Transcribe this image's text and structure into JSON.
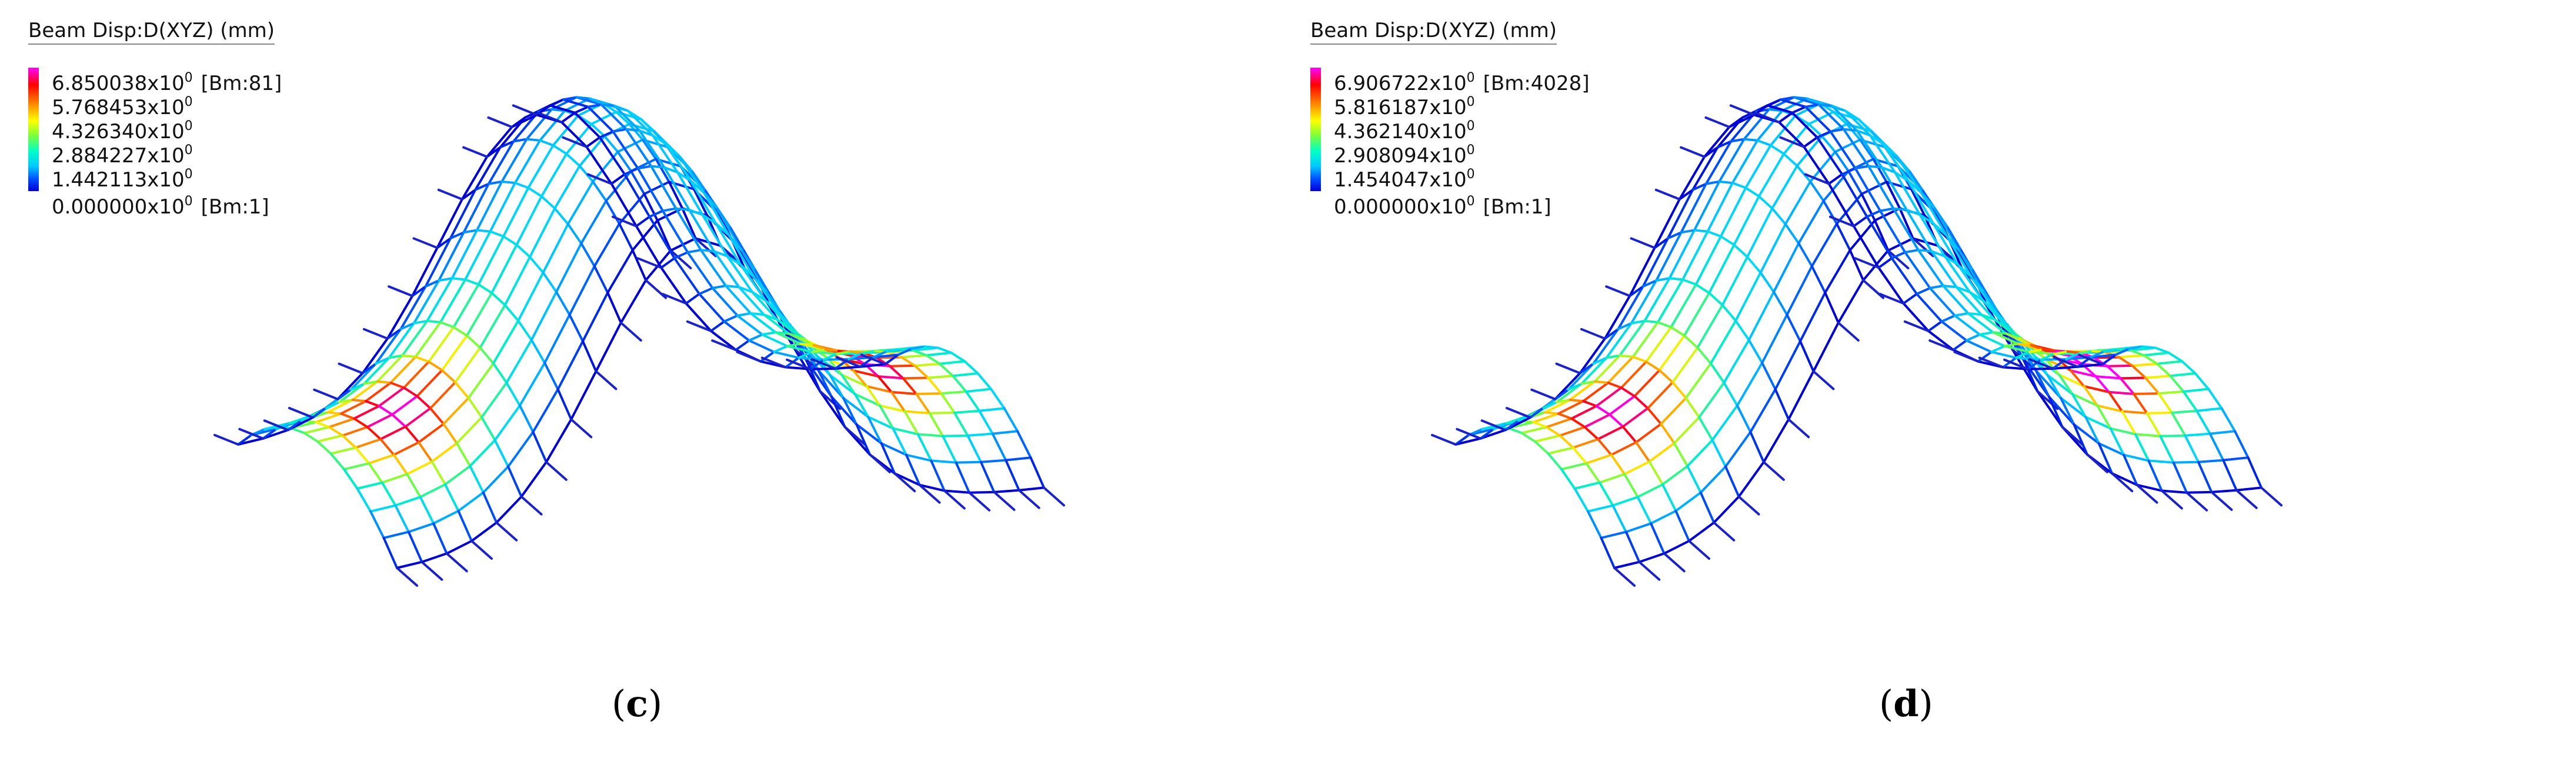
{
  "panels": [
    {
      "legend_title": "Beam Disp:D(XYZ)  (mm)",
      "ticks": [
        {
          "mantissa": "6.850038x10",
          "exp": "0",
          "tag": "[Bm:81]"
        },
        {
          "mantissa": "5.768453x10",
          "exp": "0",
          "tag": ""
        },
        {
          "mantissa": "4.326340x10",
          "exp": "0",
          "tag": ""
        },
        {
          "mantissa": "2.884227x10",
          "exp": "0",
          "tag": ""
        },
        {
          "mantissa": "1.442113x10",
          "exp": "0",
          "tag": ""
        },
        {
          "mantissa": "0.000000x10",
          "exp": "0",
          "tag": "[Bm:1]"
        }
      ],
      "caption_open": "(",
      "caption_letter": "c",
      "caption_close": ")"
    },
    {
      "legend_title": "Beam Disp:D(XYZ)  (mm)",
      "ticks": [
        {
          "mantissa": "6.906722x10",
          "exp": "0",
          "tag": "[Bm:4028]"
        },
        {
          "mantissa": "5.816187x10",
          "exp": "0",
          "tag": ""
        },
        {
          "mantissa": "4.362140x10",
          "exp": "0",
          "tag": ""
        },
        {
          "mantissa": "2.908094x10",
          "exp": "0",
          "tag": ""
        },
        {
          "mantissa": "1.454047x10",
          "exp": "0",
          "tag": ""
        },
        {
          "mantissa": "0.000000x10",
          "exp": "0",
          "tag": "[Bm:1]"
        }
      ],
      "caption_open": "(",
      "caption_letter": "d",
      "caption_close": ")"
    }
  ]
}
